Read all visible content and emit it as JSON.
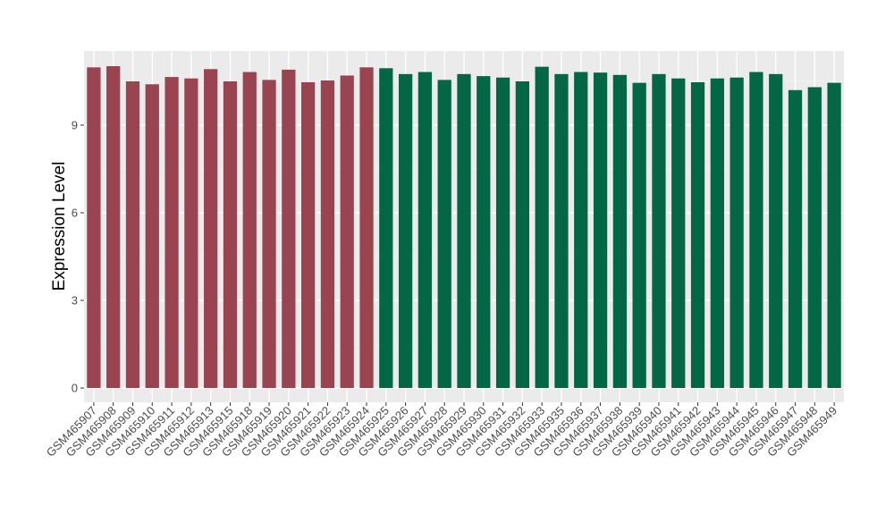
{
  "chart_data": {
    "type": "bar",
    "title": "",
    "xlabel": "",
    "ylabel": "Expression Level",
    "ylim": [
      0,
      11.5
    ],
    "yticks": [
      0,
      3,
      6,
      9
    ],
    "grid": true,
    "legend": "none",
    "categories": [
      "GSM465907",
      "GSM465908",
      "GSM465909",
      "GSM465910",
      "GSM465911",
      "GSM465912",
      "GSM465913",
      "GSM465915",
      "GSM465918",
      "GSM465919",
      "GSM465920",
      "GSM465921",
      "GSM465922",
      "GSM465923",
      "GSM465924",
      "GSM465925",
      "GSM465926",
      "GSM465927",
      "GSM465928",
      "GSM465929",
      "GSM465930",
      "GSM465931",
      "GSM465932",
      "GSM465933",
      "GSM465935",
      "GSM465936",
      "GSM465937",
      "GSM465938",
      "GSM465939",
      "GSM465940",
      "GSM465941",
      "GSM465942",
      "GSM465943",
      "GSM465944",
      "GSM465945",
      "GSM465946",
      "GSM465947",
      "GSM465948",
      "GSM465949"
    ],
    "values": [
      10.98,
      11.02,
      10.5,
      10.4,
      10.65,
      10.6,
      10.92,
      10.5,
      10.82,
      10.55,
      10.9,
      10.47,
      10.53,
      10.7,
      10.98,
      10.95,
      10.75,
      10.82,
      10.55,
      10.75,
      10.68,
      10.63,
      10.5,
      11.0,
      10.75,
      10.82,
      10.8,
      10.72,
      10.45,
      10.75,
      10.6,
      10.47,
      10.6,
      10.63,
      10.82,
      10.75,
      10.2,
      10.3,
      10.45
    ],
    "group_sizes": [
      15,
      24
    ],
    "colors": [
      "#9b4451",
      "#036644"
    ]
  }
}
